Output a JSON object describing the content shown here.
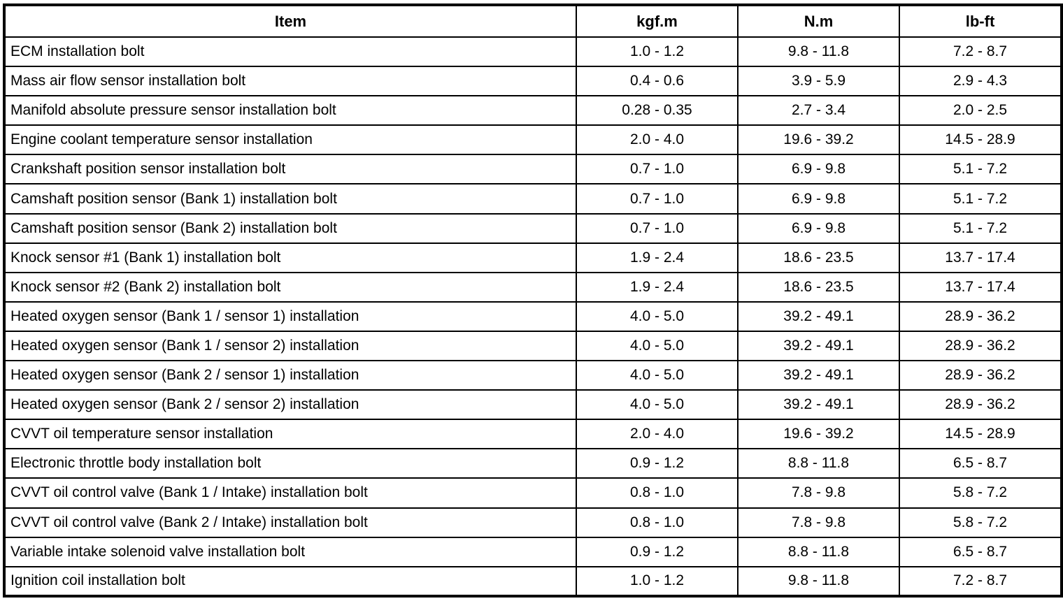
{
  "colors": {
    "border": "#000000",
    "background": "#ffffff",
    "text": "#000000"
  },
  "table": {
    "columns": [
      "Item",
      "kgf.m",
      "N.m",
      "lb-ft"
    ],
    "rows": [
      {
        "item": "ECM installation bolt",
        "kgfm": "1.0 - 1.2",
        "nm": "9.8 - 11.8",
        "lbft": "7.2 - 8.7"
      },
      {
        "item": "Mass air flow sensor installation bolt",
        "kgfm": "0.4 - 0.6",
        "nm": "3.9 - 5.9",
        "lbft": "2.9 - 4.3"
      },
      {
        "item": "Manifold absolute pressure sensor installation bolt",
        "kgfm": "0.28 - 0.35",
        "nm": "2.7 - 3.4",
        "lbft": "2.0 - 2.5"
      },
      {
        "item": "Engine coolant temperature sensor installation",
        "kgfm": "2.0 - 4.0",
        "nm": "19.6 - 39.2",
        "lbft": "14.5 - 28.9"
      },
      {
        "item": "Crankshaft position sensor installation bolt",
        "kgfm": "0.7 - 1.0",
        "nm": "6.9 - 9.8",
        "lbft": "5.1 - 7.2"
      },
      {
        "item": "Camshaft position sensor (Bank 1) installation bolt",
        "kgfm": "0.7 - 1.0",
        "nm": "6.9 - 9.8",
        "lbft": "5.1 - 7.2"
      },
      {
        "item": "Camshaft position sensor (Bank 2) installation bolt",
        "kgfm": "0.7 - 1.0",
        "nm": "6.9 - 9.8",
        "lbft": "5.1 - 7.2"
      },
      {
        "item": "Knock sensor #1 (Bank 1) installation bolt",
        "kgfm": "1.9 - 2.4",
        "nm": "18.6 - 23.5",
        "lbft": "13.7 - 17.4"
      },
      {
        "item": "Knock sensor #2 (Bank 2) installation bolt",
        "kgfm": "1.9 - 2.4",
        "nm": "18.6 - 23.5",
        "lbft": "13.7 - 17.4"
      },
      {
        "item": "Heated oxygen sensor (Bank 1 / sensor 1) installation",
        "kgfm": "4.0 - 5.0",
        "nm": "39.2 - 49.1",
        "lbft": "28.9 - 36.2"
      },
      {
        "item": "Heated oxygen sensor (Bank 1 / sensor 2) installation",
        "kgfm": "4.0 - 5.0",
        "nm": "39.2 - 49.1",
        "lbft": "28.9 - 36.2"
      },
      {
        "item": "Heated oxygen sensor (Bank 2 / sensor 1) installation",
        "kgfm": "4.0 - 5.0",
        "nm": "39.2 - 49.1",
        "lbft": "28.9 - 36.2"
      },
      {
        "item": "Heated oxygen sensor (Bank 2 / sensor 2) installation",
        "kgfm": "4.0 - 5.0",
        "nm": "39.2 - 49.1",
        "lbft": "28.9 - 36.2"
      },
      {
        "item": "CVVT oil temperature sensor installation",
        "kgfm": "2.0 - 4.0",
        "nm": "19.6 - 39.2",
        "lbft": "14.5 - 28.9"
      },
      {
        "item": "Electronic throttle body installation bolt",
        "kgfm": "0.9 - 1.2",
        "nm": "8.8 - 11.8",
        "lbft": "6.5 - 8.7"
      },
      {
        "item": "CVVT oil control valve (Bank 1 / Intake) installation bolt",
        "kgfm": "0.8 - 1.0",
        "nm": "7.8 - 9.8",
        "lbft": "5.8 - 7.2"
      },
      {
        "item": "CVVT oil control valve (Bank 2 / Intake) installation bolt",
        "kgfm": "0.8 - 1.0",
        "nm": "7.8 - 9.8",
        "lbft": "5.8 - 7.2"
      },
      {
        "item": "Variable intake solenoid valve installation bolt",
        "kgfm": "0.9 - 1.2",
        "nm": "8.8 - 11.8",
        "lbft": "6.5 - 8.7"
      },
      {
        "item": "Ignition coil installation bolt",
        "kgfm": "1.0 - 1.2",
        "nm": "9.8 - 11.8",
        "lbft": "7.2 - 8.7"
      }
    ]
  }
}
